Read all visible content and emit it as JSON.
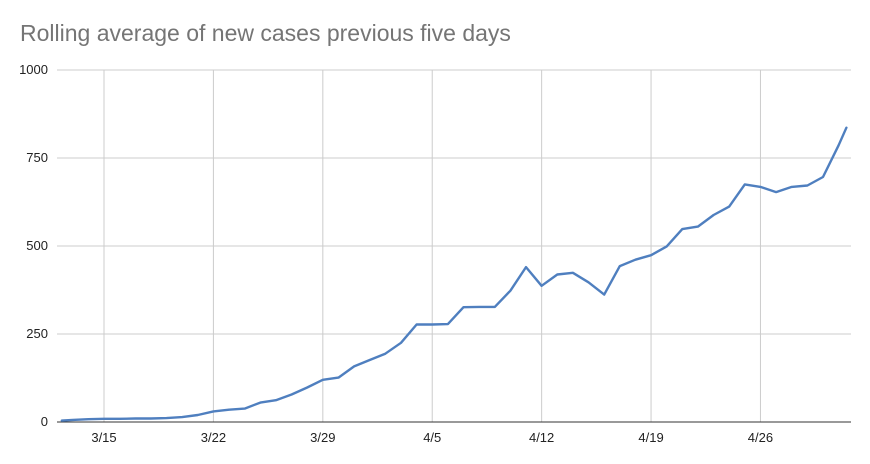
{
  "chart_data": {
    "type": "line",
    "title": "Rolling average of new cases previous five days",
    "xlabel": "",
    "ylabel": "",
    "ylim": [
      0,
      1000
    ],
    "y_ticks": [
      "0",
      "250",
      "500",
      "750",
      "1000"
    ],
    "x_ticks": [
      "3/15",
      "3/22",
      "3/29",
      "4/5",
      "4/12",
      "4/19",
      "4/26"
    ],
    "x_tick_days": [
      13,
      20,
      27,
      34,
      41,
      48,
      55
    ],
    "x_range_days": [
      10.3,
      60.5
    ],
    "grid": true,
    "legend": "none",
    "series": [
      {
        "color": "#4f7fbf",
        "x_days": [
          10.3,
          11,
          12,
          13,
          14,
          15,
          16,
          17,
          18,
          19,
          20,
          21,
          22,
          23,
          24,
          25,
          26,
          27,
          28,
          29,
          30,
          31,
          32,
          33,
          34,
          35,
          36,
          37,
          38,
          39,
          40,
          41,
          42,
          43,
          44,
          45,
          46,
          47,
          48,
          49,
          50,
          51,
          52,
          53,
          54,
          55,
          56,
          57,
          58,
          59,
          60,
          60.5
        ],
        "values": [
          4,
          6,
          8,
          9,
          9,
          10,
          10,
          11,
          14,
          20,
          30,
          35,
          38,
          55,
          62,
          78,
          98,
          120,
          126,
          158,
          176,
          194,
          225,
          277,
          277,
          278,
          326,
          327,
          327,
          373,
          440,
          387,
          419,
          424,
          397,
          362,
          443,
          461,
          474,
          499,
          548,
          555,
          588,
          612,
          675,
          668,
          653,
          668,
          672,
          696,
          786,
          836
        ]
      }
    ]
  }
}
